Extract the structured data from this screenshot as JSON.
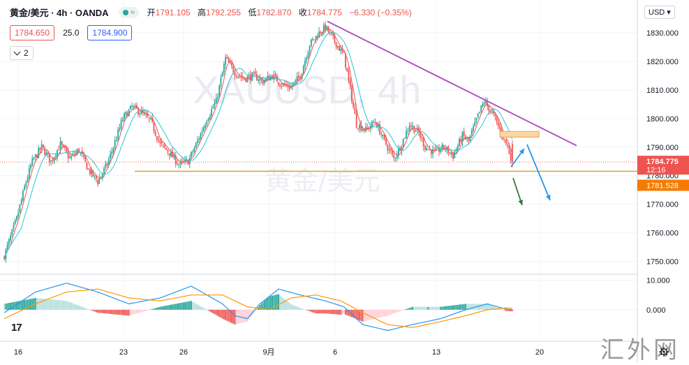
{
  "header": {
    "symbol": "黄金/美元 · 4h · OANDA",
    "open_label": "开",
    "open": "1791.105",
    "high_label": "高",
    "high": "1792.255",
    "low_label": "低",
    "low": "1782.870",
    "close_label": "收",
    "close": "1784.775",
    "change": "−6.330 (−0.35%)"
  },
  "quote": {
    "bid": "1784.650",
    "spread": "25.0",
    "ask": "1784.900"
  },
  "indicators_toggle": "2",
  "currency_selector": "USD",
  "watermark_center": {
    "symbol": "XAUUSD, 4h",
    "name": "黄金/美元"
  },
  "logo": "17",
  "corner_watermark": "汇外网",
  "colors": {
    "up": "#26a69a",
    "down": "#ef5350",
    "support": "#e2a33b",
    "trend": "#ab47bc",
    "ma_fast": "#ef5350",
    "ma_slow": "#26c6da",
    "macd": "#2196f3",
    "signal": "#ff9800"
  },
  "chart_data": {
    "type": "candlestick",
    "title": "黄金/美元 · 4h · OANDA",
    "price_axis": {
      "ticks": [
        "1830.000",
        "1820.000",
        "1810.000",
        "1800.000",
        "1790.000",
        "1780.000",
        "1770.000",
        "1760.000",
        "1750.000"
      ],
      "range": [
        1745.5,
        1840.5
      ]
    },
    "price_labels": {
      "last": "1784.775",
      "countdown": "12:16",
      "support": "1781.528"
    },
    "time_axis": [
      "16",
      "23",
      "26",
      "9月",
      "6",
      "13",
      "20"
    ],
    "support_level": 1781.528,
    "macd_axis": {
      "ticks": [
        "10.000",
        "0.000"
      ],
      "range": [
        -9,
        12
      ]
    },
    "ohlc_summary": {
      "open": 1791.105,
      "high": 1792.255,
      "low": 1782.87,
      "close": 1784.775
    },
    "price_path": [
      [
        0,
        1752
      ],
      [
        8,
        1765
      ],
      [
        14,
        1778
      ],
      [
        18,
        1785
      ],
      [
        24,
        1790
      ],
      [
        30,
        1785
      ],
      [
        36,
        1791
      ],
      [
        42,
        1786
      ],
      [
        48,
        1789
      ],
      [
        54,
        1782
      ],
      [
        60,
        1778
      ],
      [
        66,
        1784
      ],
      [
        70,
        1790
      ],
      [
        76,
        1800
      ],
      [
        82,
        1804
      ],
      [
        88,
        1802
      ],
      [
        94,
        1799
      ],
      [
        100,
        1791
      ],
      [
        106,
        1788
      ],
      [
        112,
        1784
      ],
      [
        118,
        1785
      ],
      [
        124,
        1792
      ],
      [
        130,
        1800
      ],
      [
        136,
        1806
      ],
      [
        142,
        1821
      ],
      [
        148,
        1816
      ],
      [
        154,
        1814
      ],
      [
        160,
        1815
      ],
      [
        166,
        1813
      ],
      [
        172,
        1815
      ],
      [
        178,
        1812
      ],
      [
        184,
        1811
      ],
      [
        190,
        1815
      ],
      [
        196,
        1826
      ],
      [
        202,
        1830
      ],
      [
        206,
        1832
      ],
      [
        212,
        1827
      ],
      [
        218,
        1822
      ],
      [
        222,
        1810
      ],
      [
        226,
        1798
      ],
      [
        232,
        1796
      ],
      [
        238,
        1799
      ],
      [
        244,
        1792
      ],
      [
        250,
        1786
      ],
      [
        254,
        1790
      ],
      [
        260,
        1798
      ],
      [
        266,
        1795
      ],
      [
        270,
        1790
      ],
      [
        276,
        1788
      ],
      [
        282,
        1790
      ],
      [
        288,
        1787
      ],
      [
        294,
        1794
      ],
      [
        298,
        1792
      ],
      [
        304,
        1801
      ],
      [
        308,
        1806
      ],
      [
        314,
        1801
      ],
      [
        318,
        1796
      ],
      [
        323,
        1790
      ],
      [
        326,
        1784.775
      ]
    ],
    "macd_path": [
      [
        0,
        -1
      ],
      [
        20,
        6
      ],
      [
        40,
        9
      ],
      [
        60,
        6
      ],
      [
        80,
        2
      ],
      [
        100,
        4
      ],
      [
        120,
        8
      ],
      [
        140,
        2
      ],
      [
        148,
        -2
      ],
      [
        156,
        -3
      ],
      [
        164,
        2
      ],
      [
        176,
        7
      ],
      [
        190,
        5
      ],
      [
        206,
        3
      ],
      [
        218,
        1
      ],
      [
        230,
        -5
      ],
      [
        246,
        -7
      ],
      [
        262,
        -5
      ],
      [
        280,
        -3
      ],
      [
        296,
        0
      ],
      [
        310,
        2
      ],
      [
        322,
        0.2
      ],
      [
        326,
        0
      ]
    ],
    "signal_path": [
      [
        0,
        -3
      ],
      [
        20,
        2
      ],
      [
        40,
        6
      ],
      [
        60,
        7
      ],
      [
        80,
        4
      ],
      [
        100,
        3
      ],
      [
        120,
        5
      ],
      [
        140,
        5
      ],
      [
        156,
        1
      ],
      [
        170,
        0
      ],
      [
        184,
        4
      ],
      [
        200,
        5
      ],
      [
        216,
        3
      ],
      [
        230,
        -1
      ],
      [
        246,
        -5
      ],
      [
        262,
        -6
      ],
      [
        280,
        -4
      ],
      [
        296,
        -2
      ],
      [
        310,
        0
      ],
      [
        322,
        0.6
      ],
      [
        326,
        0.5
      ]
    ]
  }
}
